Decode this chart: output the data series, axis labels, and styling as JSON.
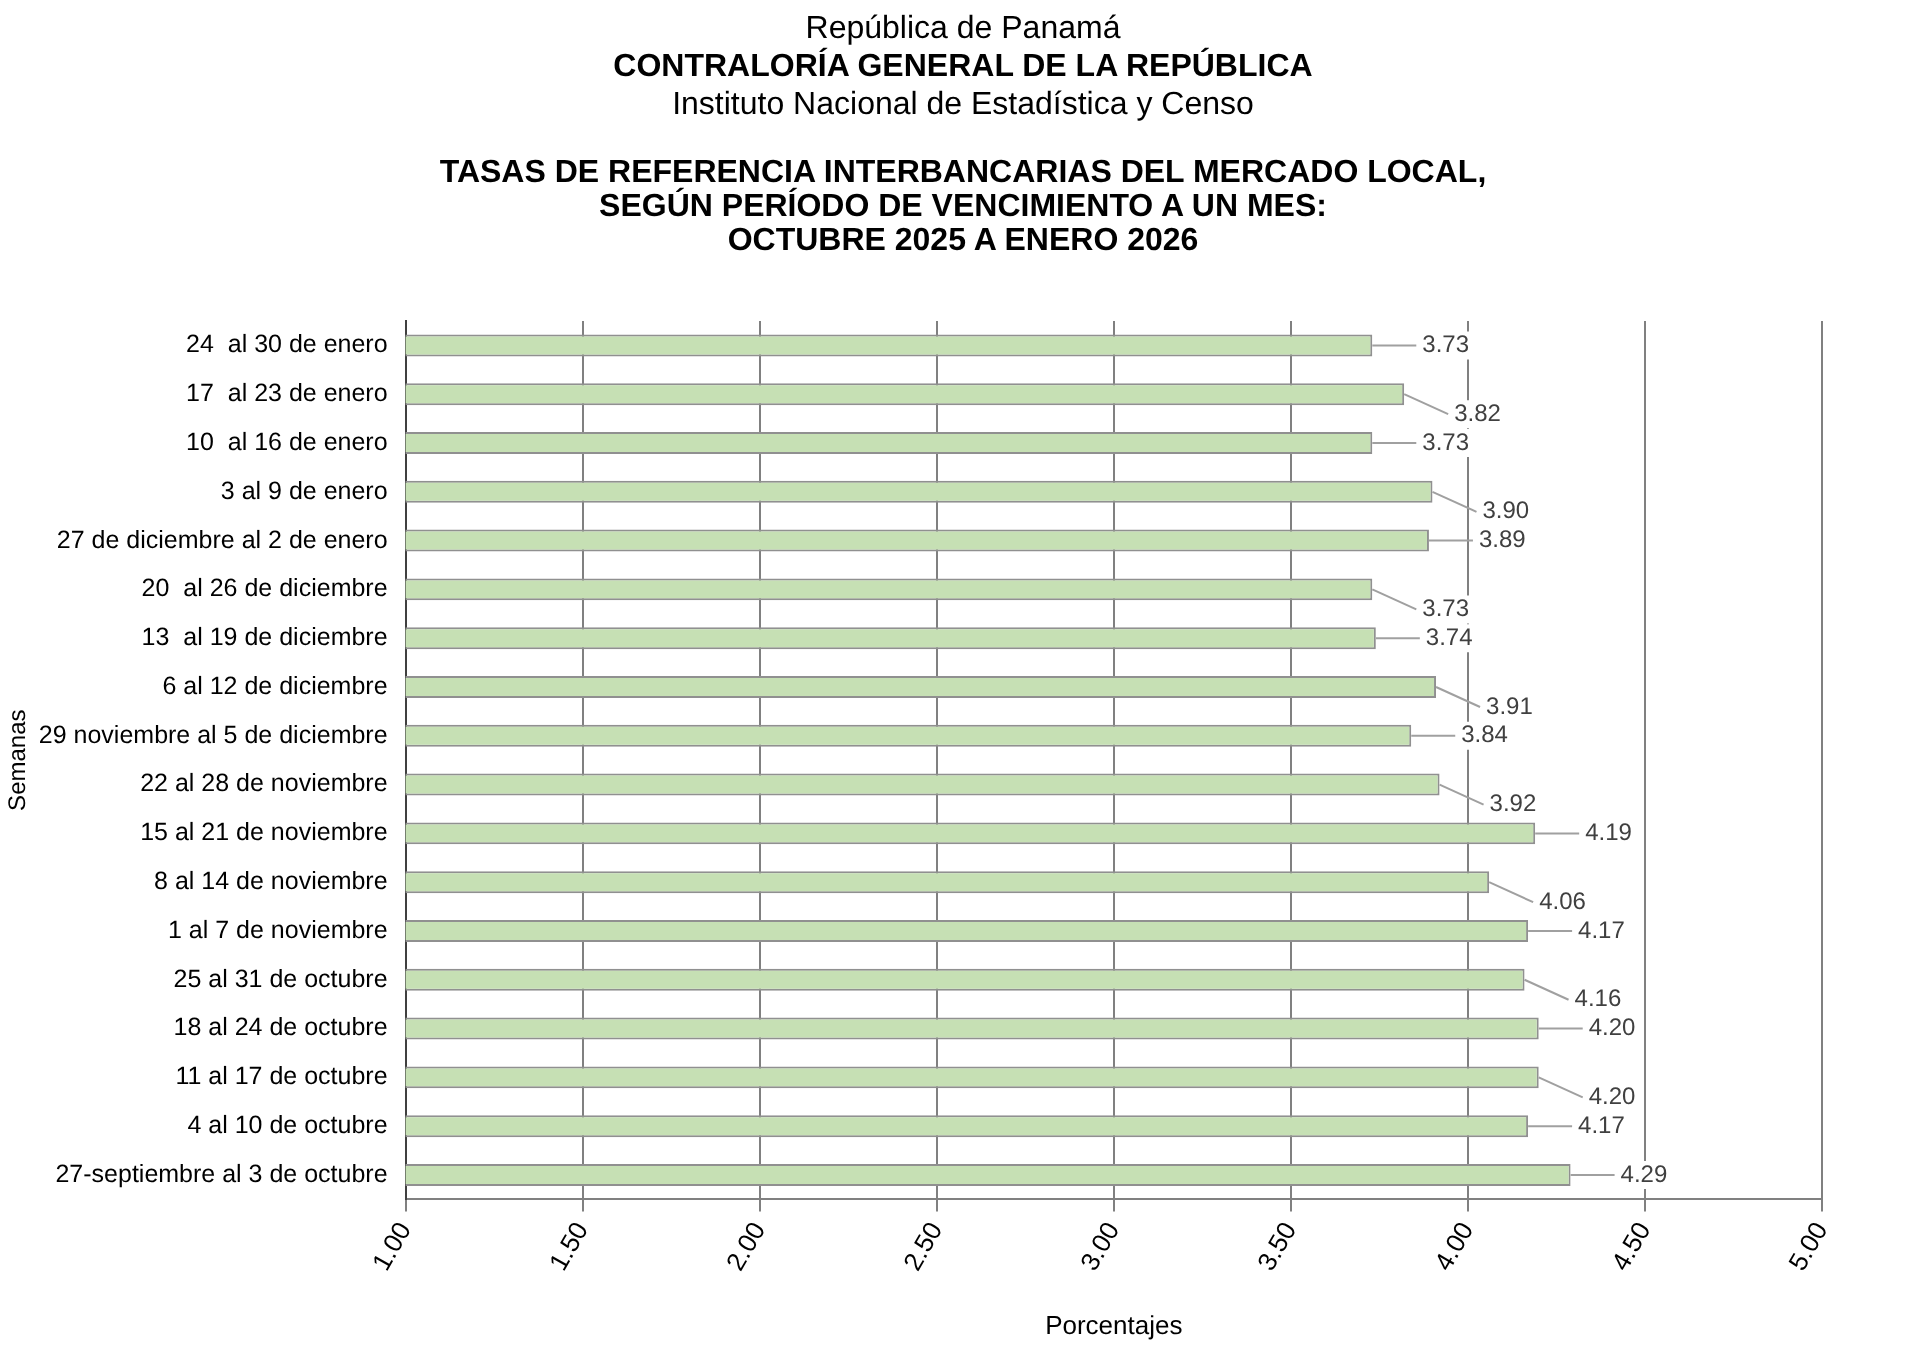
{
  "chart_data": {
    "type": "bar",
    "orientation": "horizontal",
    "subtitle": "República de Panamá\nCONTRALORÍA GENERAL DE LA REPÚBLICA\nInstituto  Nacional de Estadística y Censo",
    "title": "TASAS DE REFERENCIA INTERBANCARIAS DEL MERCADO LOCAL,\nSEGÚN PERÍODO DE VENCIMIENTO A UN MES:\nOCTUBRE 2025 A ENERO 2026",
    "xlabel": "Porcentajes",
    "ylabel": "Semanas",
    "categories": [
      "24  al 30 de enero",
      "17  al 23 de enero",
      "10  al 16 de enero",
      "3 al 9 de enero",
      "27 de diciembre al 2 de enero",
      "20  al 26 de diciembre",
      "13  al 19 de diciembre",
      "6 al 12 de diciembre",
      "29 noviembre al 5 de diciembre",
      "22 al 28 de noviembre",
      "15 al 21 de noviembre",
      "8 al 14 de noviembre",
      "1 al 7 de noviembre",
      "25 al 31 de octubre",
      "18 al 24 de octubre",
      "11 al 17 de octubre",
      "4 al 10 de octubre",
      "27-septiembre al 3 de octubre"
    ],
    "values": [
      3.73,
      3.82,
      3.73,
      3.9,
      3.89,
      3.73,
      3.74,
      3.91,
      3.84,
      3.92,
      4.19,
      4.06,
      4.17,
      4.16,
      4.2,
      4.2,
      4.17,
      4.29
    ],
    "value_labels": [
      "3.73",
      "3.82",
      "3.73",
      "3.90",
      "3.89",
      "3.73",
      "3.74",
      "3.91",
      "3.84",
      "3.92",
      "4.19",
      "4.06",
      "4.17",
      "4.16",
      "4.20",
      "4.20",
      "4.17",
      "4.29"
    ],
    "color": "#c6e0b4",
    "xlim": [
      1,
      5
    ],
    "xticks": [
      {
        "value": 1,
        "label": "1.00"
      },
      {
        "value": 1.5,
        "label": "1.50"
      },
      {
        "value": 2,
        "label": "2.00"
      },
      {
        "value": 2.5,
        "label": "2.50"
      },
      {
        "value": 3,
        "label": "3.00"
      },
      {
        "value": 3.5,
        "label": "3.50"
      },
      {
        "value": 4,
        "label": "4.00"
      },
      {
        "value": 4.5,
        "label": "4.50"
      },
      {
        "value": 5,
        "label": "5.00"
      }
    ],
    "grid": "x",
    "legend": false
  }
}
